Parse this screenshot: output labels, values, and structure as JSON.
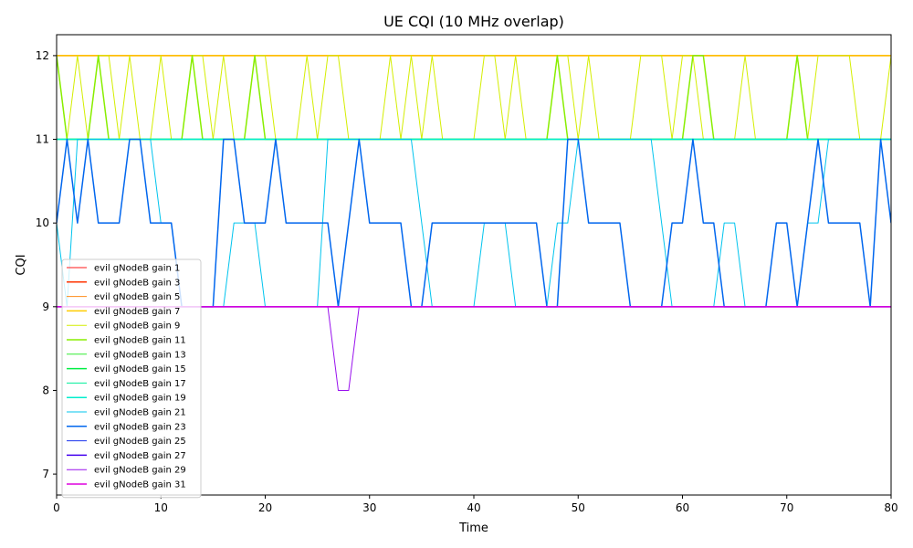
{
  "chart_data": {
    "type": "line",
    "title": "UE CQI (10 MHz overlap)",
    "xlabel": "Time",
    "ylabel": "CQI",
    "xlim": [
      0,
      80
    ],
    "ylim": [
      6.75,
      12.25
    ],
    "xticks": [
      0,
      10,
      20,
      30,
      40,
      50,
      60,
      70,
      80
    ],
    "yticks": [
      7,
      8,
      9,
      10,
      11,
      12
    ],
    "grid": false,
    "legend_position": "lower-left",
    "series": [
      {
        "name": "evil gNodeB gain 1",
        "color": "#ff1a1a",
        "width": 1.0,
        "points": [
          [
            0,
            12
          ],
          [
            80,
            12
          ]
        ]
      },
      {
        "name": "evil gNodeB gain 3",
        "color": "#ff3300",
        "width": 1.5,
        "points": [
          [
            0,
            12
          ],
          [
            80,
            12
          ]
        ]
      },
      {
        "name": "evil gNodeB gain 5",
        "color": "#ff8c1a",
        "width": 1.0,
        "points": [
          [
            0,
            12
          ],
          [
            80,
            12
          ]
        ]
      },
      {
        "name": "evil gNodeB gain 7",
        "color": "#ffcc00",
        "width": 1.5,
        "points": [
          [
            0,
            12
          ],
          [
            80,
            12
          ]
        ]
      },
      {
        "name": "evil gNodeB gain 9",
        "color": "#d4ee00",
        "width": 1.0,
        "points": [
          [
            0,
            12
          ],
          [
            1,
            11
          ],
          [
            2,
            12
          ],
          [
            3,
            11
          ],
          [
            4,
            12
          ],
          [
            5,
            12
          ],
          [
            6,
            11
          ],
          [
            7,
            12
          ],
          [
            8,
            11
          ],
          [
            9,
            11
          ],
          [
            10,
            12
          ],
          [
            11,
            11
          ],
          [
            12,
            11
          ],
          [
            13,
            12
          ],
          [
            14,
            12
          ],
          [
            15,
            11
          ],
          [
            16,
            12
          ],
          [
            17,
            11
          ],
          [
            18,
            11
          ],
          [
            19,
            12
          ],
          [
            20,
            12
          ],
          [
            21,
            11
          ],
          [
            22,
            11
          ],
          [
            23,
            11
          ],
          [
            24,
            12
          ],
          [
            25,
            11
          ],
          [
            26,
            12
          ],
          [
            27,
            12
          ],
          [
            28,
            11
          ],
          [
            29,
            11
          ],
          [
            30,
            11
          ],
          [
            31,
            11
          ],
          [
            32,
            12
          ],
          [
            33,
            11
          ],
          [
            34,
            12
          ],
          [
            35,
            11
          ],
          [
            36,
            12
          ],
          [
            37,
            11
          ],
          [
            38,
            11
          ],
          [
            39,
            11
          ],
          [
            40,
            11
          ],
          [
            41,
            12
          ],
          [
            42,
            12
          ],
          [
            43,
            11
          ],
          [
            44,
            12
          ],
          [
            45,
            11
          ],
          [
            46,
            11
          ],
          [
            47,
            11
          ],
          [
            48,
            12
          ],
          [
            49,
            12
          ],
          [
            50,
            11
          ],
          [
            51,
            12
          ],
          [
            52,
            11
          ],
          [
            53,
            11
          ],
          [
            54,
            11
          ],
          [
            55,
            11
          ],
          [
            56,
            12
          ],
          [
            57,
            12
          ],
          [
            58,
            12
          ],
          [
            59,
            11
          ],
          [
            60,
            12
          ],
          [
            61,
            12
          ],
          [
            62,
            11
          ],
          [
            63,
            11
          ],
          [
            64,
            11
          ],
          [
            65,
            11
          ],
          [
            66,
            12
          ],
          [
            67,
            11
          ],
          [
            68,
            11
          ],
          [
            69,
            11
          ],
          [
            70,
            11
          ],
          [
            71,
            12
          ],
          [
            72,
            11
          ],
          [
            73,
            12
          ],
          [
            74,
            12
          ],
          [
            75,
            12
          ],
          [
            76,
            12
          ],
          [
            77,
            11
          ],
          [
            78,
            11
          ],
          [
            79,
            11
          ],
          [
            80,
            12
          ]
        ]
      },
      {
        "name": "evil gNodeB gain 11",
        "color": "#88ee00",
        "width": 1.5,
        "points": [
          [
            0,
            12
          ],
          [
            1,
            11
          ],
          [
            2,
            11
          ],
          [
            3,
            11
          ],
          [
            4,
            12
          ],
          [
            5,
            11
          ],
          [
            6,
            11
          ],
          [
            7,
            11
          ],
          [
            8,
            11
          ],
          [
            9,
            11
          ],
          [
            10,
            11
          ],
          [
            11,
            11
          ],
          [
            12,
            11
          ],
          [
            13,
            12
          ],
          [
            14,
            11
          ],
          [
            15,
            11
          ],
          [
            16,
            11
          ],
          [
            17,
            11
          ],
          [
            18,
            11
          ],
          [
            19,
            12
          ],
          [
            20,
            11
          ],
          [
            21,
            11
          ],
          [
            45,
            11
          ],
          [
            46,
            11
          ],
          [
            47,
            11
          ],
          [
            48,
            12
          ],
          [
            49,
            11
          ],
          [
            50,
            11
          ],
          [
            59,
            11
          ],
          [
            60,
            11
          ],
          [
            61,
            12
          ],
          [
            62,
            12
          ],
          [
            63,
            11
          ],
          [
            64,
            11
          ],
          [
            70,
            11
          ],
          [
            71,
            12
          ],
          [
            72,
            11
          ],
          [
            73,
            11
          ],
          [
            80,
            11
          ]
        ]
      },
      {
        "name": "evil gNodeB gain 13",
        "color": "#33ee33",
        "width": 1.0,
        "points": [
          [
            0,
            11
          ],
          [
            80,
            11
          ]
        ]
      },
      {
        "name": "evil gNodeB gain 15",
        "color": "#00ee44",
        "width": 1.5,
        "points": [
          [
            0,
            11
          ],
          [
            80,
            11
          ]
        ]
      },
      {
        "name": "evil gNodeB gain 17",
        "color": "#00ee99",
        "width": 1.0,
        "points": [
          [
            0,
            11
          ],
          [
            80,
            11
          ]
        ]
      },
      {
        "name": "evil gNodeB gain 19",
        "color": "#00eecc",
        "width": 1.5,
        "points": [
          [
            0,
            11
          ],
          [
            80,
            11
          ]
        ]
      },
      {
        "name": "evil gNodeB gain 21",
        "color": "#00c4ee",
        "width": 1.0,
        "points": [
          [
            0,
            10
          ],
          [
            1,
            9
          ],
          [
            2,
            11
          ],
          [
            3,
            11
          ],
          [
            4,
            11
          ],
          [
            5,
            11
          ],
          [
            6,
            11
          ],
          [
            7,
            11
          ],
          [
            8,
            11
          ],
          [
            9,
            11
          ],
          [
            10,
            10
          ],
          [
            11,
            10
          ],
          [
            12,
            9
          ],
          [
            13,
            9
          ],
          [
            14,
            9
          ],
          [
            15,
            9
          ],
          [
            16,
            9
          ],
          [
            17,
            10
          ],
          [
            18,
            10
          ],
          [
            19,
            10
          ],
          [
            20,
            9
          ],
          [
            21,
            9
          ],
          [
            22,
            9
          ],
          [
            23,
            9
          ],
          [
            24,
            9
          ],
          [
            25,
            9
          ],
          [
            26,
            11
          ],
          [
            27,
            11
          ],
          [
            28,
            11
          ],
          [
            29,
            11
          ],
          [
            30,
            11
          ],
          [
            31,
            11
          ],
          [
            32,
            11
          ],
          [
            33,
            11
          ],
          [
            34,
            11
          ],
          [
            35,
            10
          ],
          [
            36,
            9
          ],
          [
            37,
            9
          ],
          [
            38,
            9
          ],
          [
            39,
            9
          ],
          [
            40,
            9
          ],
          [
            41,
            10
          ],
          [
            42,
            10
          ],
          [
            43,
            10
          ],
          [
            44,
            9
          ],
          [
            45,
            9
          ],
          [
            46,
            9
          ],
          [
            47,
            9
          ],
          [
            48,
            10
          ],
          [
            49,
            10
          ],
          [
            50,
            11
          ],
          [
            51,
            11
          ],
          [
            52,
            11
          ],
          [
            53,
            11
          ],
          [
            54,
            11
          ],
          [
            55,
            11
          ],
          [
            56,
            11
          ],
          [
            57,
            11
          ],
          [
            58,
            10
          ],
          [
            59,
            9
          ],
          [
            60,
            9
          ],
          [
            61,
            9
          ],
          [
            62,
            9
          ],
          [
            63,
            9
          ],
          [
            64,
            10
          ],
          [
            65,
            10
          ],
          [
            66,
            9
          ],
          [
            67,
            9
          ],
          [
            68,
            9
          ],
          [
            69,
            9
          ],
          [
            70,
            9
          ],
          [
            71,
            9
          ],
          [
            72,
            10
          ],
          [
            73,
            10
          ],
          [
            74,
            11
          ],
          [
            75,
            11
          ],
          [
            76,
            11
          ],
          [
            77,
            11
          ],
          [
            78,
            11
          ],
          [
            79,
            11
          ],
          [
            80,
            11
          ]
        ]
      },
      {
        "name": "evil gNodeB gain 23",
        "color": "#0066ee",
        "width": 1.5,
        "points": [
          [
            0,
            10
          ],
          [
            1,
            11
          ],
          [
            2,
            10
          ],
          [
            3,
            11
          ],
          [
            4,
            10
          ],
          [
            5,
            10
          ],
          [
            6,
            10
          ],
          [
            7,
            11
          ],
          [
            8,
            11
          ],
          [
            9,
            10
          ],
          [
            10,
            10
          ],
          [
            11,
            10
          ],
          [
            12,
            9
          ],
          [
            13,
            9
          ],
          [
            14,
            9
          ],
          [
            15,
            9
          ],
          [
            16,
            11
          ],
          [
            17,
            11
          ],
          [
            18,
            10
          ],
          [
            19,
            10
          ],
          [
            20,
            10
          ],
          [
            21,
            11
          ],
          [
            22,
            10
          ],
          [
            23,
            10
          ],
          [
            24,
            10
          ],
          [
            25,
            10
          ],
          [
            26,
            10
          ],
          [
            27,
            9
          ],
          [
            28,
            10
          ],
          [
            29,
            11
          ],
          [
            30,
            10
          ],
          [
            31,
            10
          ],
          [
            32,
            10
          ],
          [
            33,
            10
          ],
          [
            34,
            9
          ],
          [
            35,
            9
          ],
          [
            36,
            10
          ],
          [
            37,
            10
          ],
          [
            38,
            10
          ],
          [
            39,
            10
          ],
          [
            40,
            10
          ],
          [
            41,
            10
          ],
          [
            42,
            10
          ],
          [
            43,
            10
          ],
          [
            44,
            10
          ],
          [
            45,
            10
          ],
          [
            46,
            10
          ],
          [
            47,
            9
          ],
          [
            48,
            9
          ],
          [
            49,
            11
          ],
          [
            50,
            11
          ],
          [
            51,
            10
          ],
          [
            52,
            10
          ],
          [
            53,
            10
          ],
          [
            54,
            10
          ],
          [
            55,
            9
          ],
          [
            56,
            9
          ],
          [
            57,
            9
          ],
          [
            58,
            9
          ],
          [
            59,
            10
          ],
          [
            60,
            10
          ],
          [
            61,
            11
          ],
          [
            62,
            10
          ],
          [
            63,
            10
          ],
          [
            64,
            9
          ],
          [
            65,
            9
          ],
          [
            66,
            9
          ],
          [
            67,
            9
          ],
          [
            68,
            9
          ],
          [
            69,
            10
          ],
          [
            70,
            10
          ],
          [
            71,
            9
          ],
          [
            72,
            10
          ],
          [
            73,
            11
          ],
          [
            74,
            10
          ],
          [
            75,
            10
          ],
          [
            76,
            10
          ],
          [
            77,
            10
          ],
          [
            78,
            9
          ],
          [
            79,
            11
          ],
          [
            80,
            10
          ]
        ]
      },
      {
        "name": "evil gNodeB gain 25",
        "color": "#1a33ee",
        "width": 1.0,
        "points": [
          [
            0,
            9
          ],
          [
            80,
            9
          ]
        ]
      },
      {
        "name": "evil gNodeB gain 27",
        "color": "#4400ee",
        "width": 1.5,
        "points": [
          [
            0,
            9
          ],
          [
            80,
            9
          ]
        ]
      },
      {
        "name": "evil gNodeB gain 29",
        "color": "#9911ee",
        "width": 1.0,
        "points": [
          [
            0,
            9
          ],
          [
            26,
            9
          ],
          [
            27,
            8
          ],
          [
            28,
            8
          ],
          [
            29,
            9
          ],
          [
            80,
            9
          ]
        ]
      },
      {
        "name": "evil gNodeB gain 31",
        "color": "#dd00dd",
        "width": 1.5,
        "points": [
          [
            0,
            9
          ],
          [
            80,
            9
          ]
        ]
      }
    ]
  }
}
